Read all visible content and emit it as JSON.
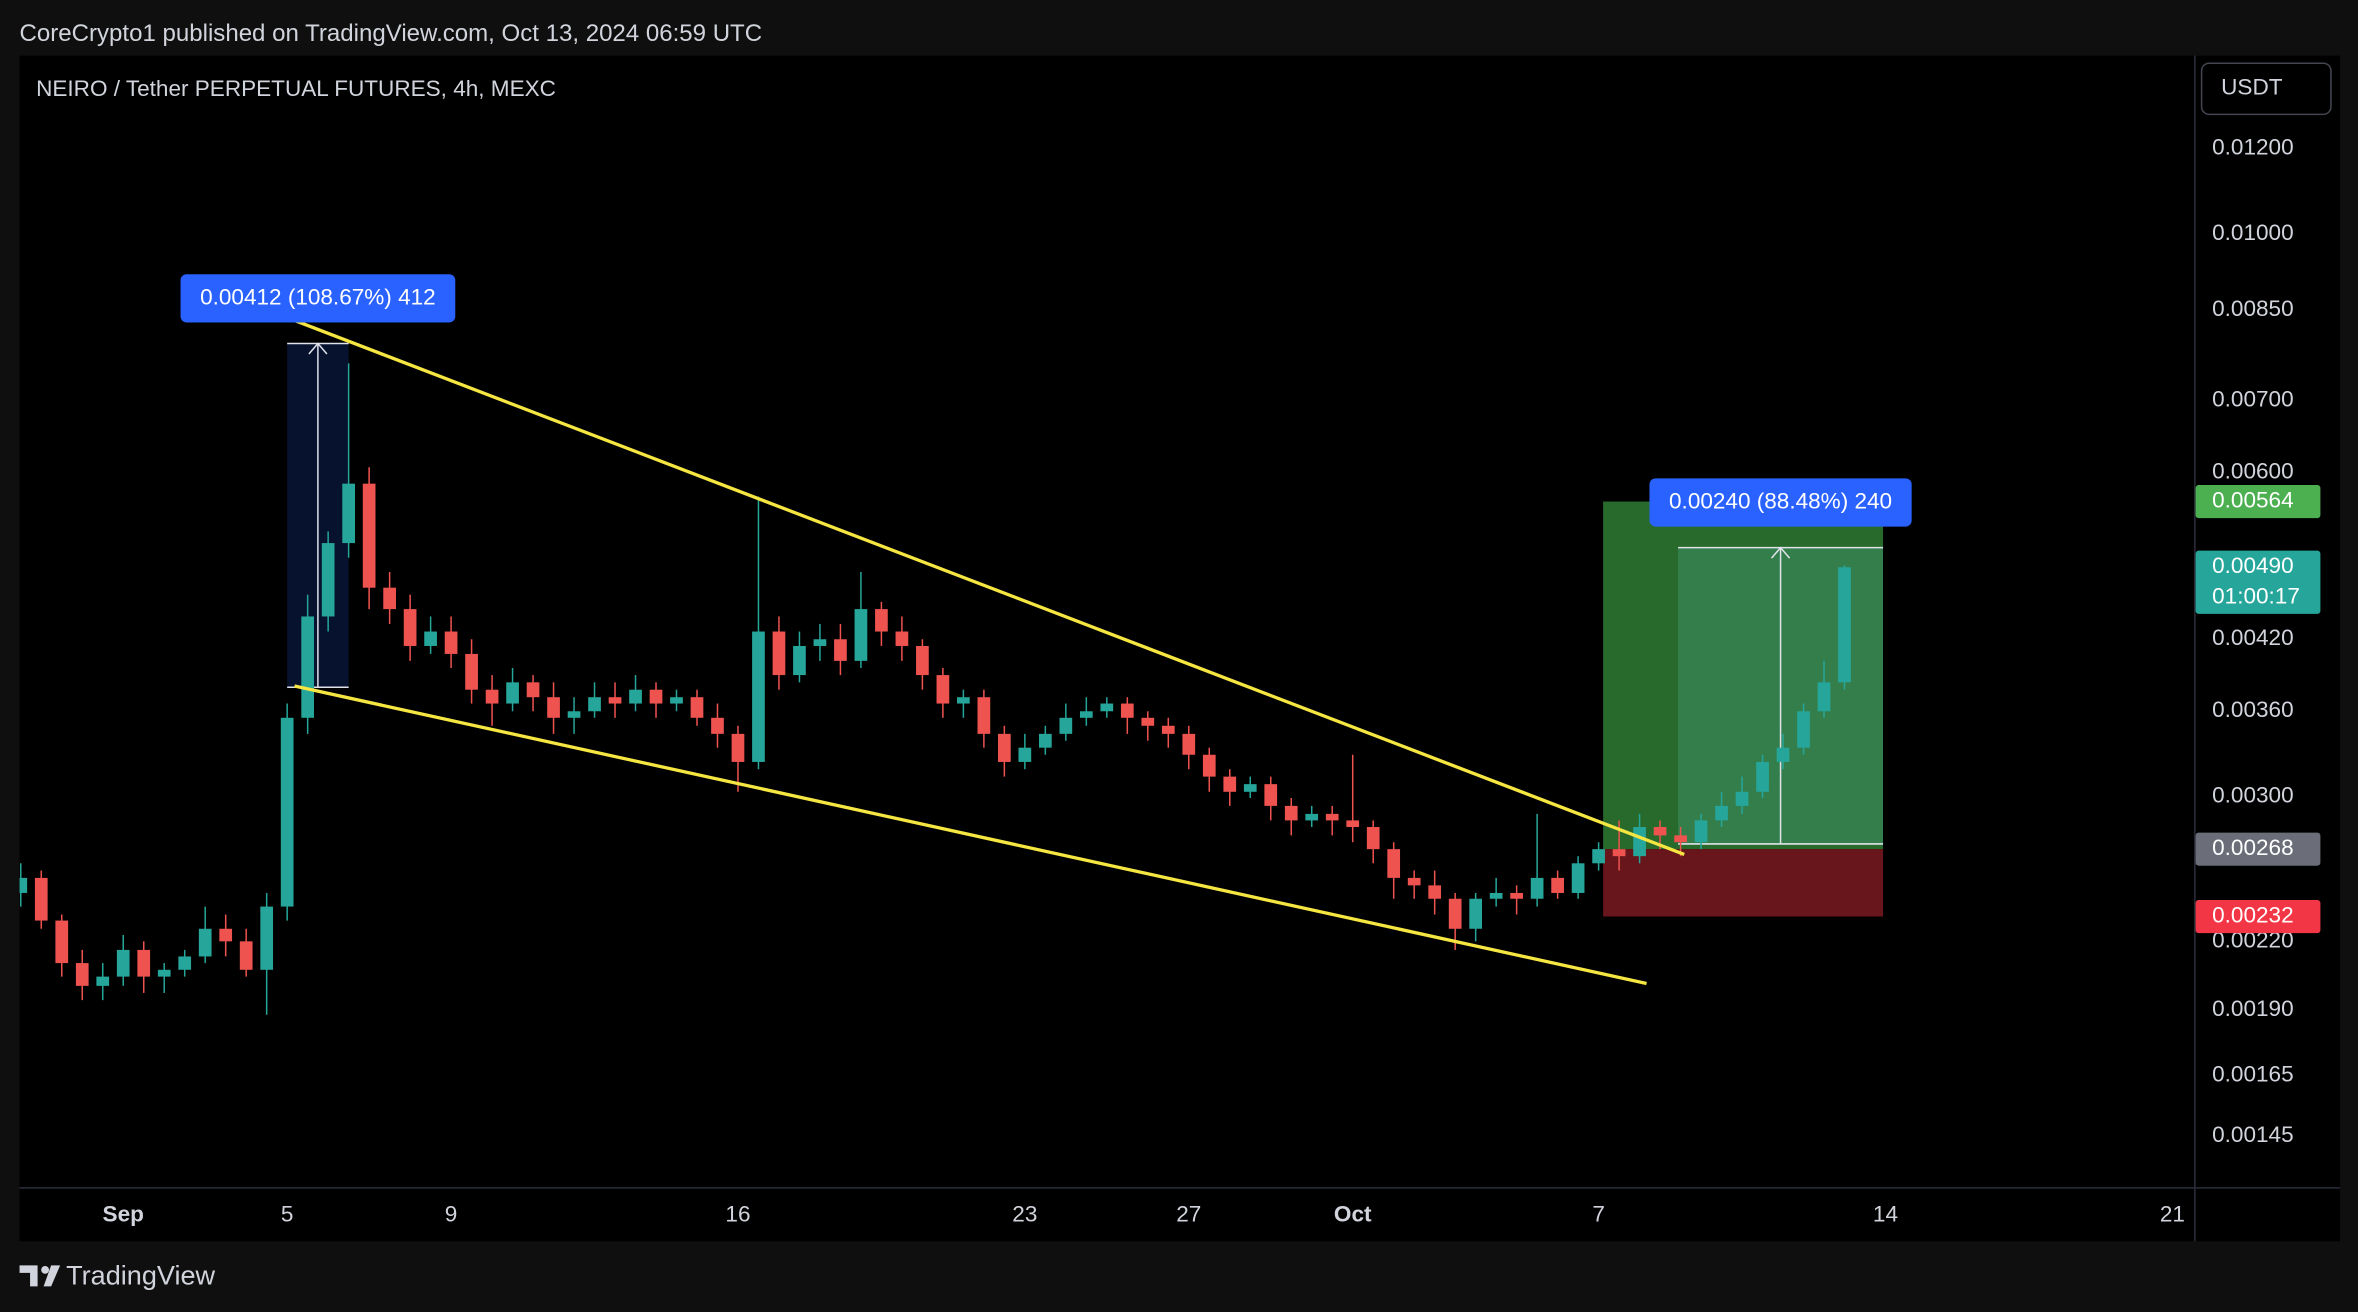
{
  "header": {
    "published": "CoreCrypto1 published on TradingView.com, Oct 13, 2024 06:59 UTC"
  },
  "footer": {
    "brand": "TradingView"
  },
  "chart_data": {
    "type": "candlestick",
    "title": "NEIRO / Tether PERPETUAL FUTURES, 4h, MEXC",
    "currency": "USDT",
    "log_scale": true,
    "grid": false,
    "up_color": "#26a69a",
    "down_color": "#ef5350",
    "x": [
      -2.5,
      -2,
      -1.5,
      -1,
      -0.5,
      0,
      0.5,
      1,
      1.5,
      2,
      2.5,
      3,
      3.5,
      4,
      4.5,
      5,
      5.5,
      6,
      6.5,
      7,
      7.5,
      8,
      8.5,
      9,
      9.5,
      10,
      10.5,
      11,
      11.5,
      12,
      12.5,
      13,
      13.5,
      14,
      14.5,
      15,
      15.5,
      16,
      16.5,
      17,
      17.5,
      18,
      18.5,
      19,
      19.5,
      20,
      20.5,
      21,
      21.5,
      22,
      22.5,
      23,
      23.5,
      24,
      24.5,
      25,
      25.5,
      26,
      26.5,
      27,
      27.5,
      28,
      28.5,
      29,
      29.5,
      30,
      30.5,
      31,
      31.5,
      32,
      32.5,
      33,
      33.5,
      34,
      34.5,
      35,
      35.5,
      36,
      36.5,
      37,
      37.5,
      38,
      38.5,
      39,
      39.5,
      40,
      40.5,
      41,
      41.5,
      42
    ],
    "open": [
      0.00244,
      0.00252,
      0.0023,
      0.0021,
      0.002,
      0.00204,
      0.00216,
      0.00204,
      0.00207,
      0.00213,
      0.00226,
      0.0022,
      0.00207,
      0.00237,
      0.00355,
      0.00441,
      0.00516,
      0.00586,
      0.00469,
      0.00448,
      0.00414,
      0.00427,
      0.00407,
      0.00377,
      0.00366,
      0.00383,
      0.00371,
      0.00355,
      0.0036,
      0.00371,
      0.00366,
      0.00377,
      0.00366,
      0.00371,
      0.00355,
      0.00343,
      0.00323,
      0.00427,
      0.00389,
      0.00414,
      0.0042,
      0.00401,
      0.00448,
      0.00427,
      0.00414,
      0.00389,
      0.00366,
      0.00371,
      0.00343,
      0.00323,
      0.00333,
      0.00343,
      0.00355,
      0.0036,
      0.00366,
      0.00355,
      0.00349,
      0.00343,
      0.00328,
      0.00313,
      0.00303,
      0.00308,
      0.00294,
      0.00285,
      0.00289,
      0.00285,
      0.00281,
      0.00268,
      0.00252,
      0.00248,
      0.00241,
      0.00226,
      0.00241,
      0.00244,
      0.00241,
      0.00252,
      0.00244,
      0.0026,
      0.00268,
      0.00264,
      0.00281,
      0.00276,
      0.00272,
      0.00285,
      0.00294,
      0.00303,
      0.00323,
      0.00333,
      0.0036,
      0.00383
    ],
    "high": [
      0.0026,
      0.00256,
      0.00233,
      0.00216,
      0.0021,
      0.00223,
      0.0022,
      0.0021,
      0.00216,
      0.00237,
      0.00233,
      0.00226,
      0.00244,
      0.00366,
      0.00462,
      0.00529,
      0.00758,
      0.00607,
      0.00485,
      0.00462,
      0.00441,
      0.00441,
      0.0042,
      0.00389,
      0.00395,
      0.00389,
      0.00383,
      0.00371,
      0.00383,
      0.00383,
      0.00389,
      0.00383,
      0.00377,
      0.00377,
      0.00366,
      0.00349,
      0.0057,
      0.00441,
      0.00427,
      0.00434,
      0.00434,
      0.00485,
      0.00455,
      0.00441,
      0.0042,
      0.00395,
      0.00377,
      0.00377,
      0.00349,
      0.00343,
      0.00349,
      0.00366,
      0.00371,
      0.00371,
      0.00371,
      0.0036,
      0.00355,
      0.00349,
      0.00333,
      0.00318,
      0.00313,
      0.00313,
      0.00299,
      0.00294,
      0.00294,
      0.00328,
      0.00285,
      0.00272,
      0.00256,
      0.00256,
      0.00244,
      0.00244,
      0.00252,
      0.00248,
      0.00289,
      0.00256,
      0.00264,
      0.00272,
      0.00285,
      0.00289,
      0.00285,
      0.00281,
      0.00289,
      0.00303,
      0.00313,
      0.00328,
      0.00343,
      0.00366,
      0.00401,
      0.00492
    ],
    "low": [
      0.00237,
      0.00226,
      0.00204,
      0.00194,
      0.00194,
      0.002,
      0.00197,
      0.00197,
      0.00204,
      0.0021,
      0.00213,
      0.00204,
      0.00188,
      0.0023,
      0.00343,
      0.00427,
      0.005,
      0.00448,
      0.00434,
      0.00401,
      0.00407,
      0.00395,
      0.00366,
      0.00349,
      0.0036,
      0.0036,
      0.00343,
      0.00343,
      0.00355,
      0.00355,
      0.0036,
      0.00355,
      0.0036,
      0.00349,
      0.00333,
      0.00303,
      0.00318,
      0.00377,
      0.00383,
      0.00401,
      0.00389,
      0.00395,
      0.00414,
      0.00401,
      0.00377,
      0.00355,
      0.00355,
      0.00333,
      0.00313,
      0.00318,
      0.00328,
      0.00338,
      0.00349,
      0.00355,
      0.00343,
      0.00338,
      0.00333,
      0.00318,
      0.00303,
      0.00294,
      0.00299,
      0.00285,
      0.00276,
      0.00281,
      0.00276,
      0.00272,
      0.0026,
      0.00241,
      0.00241,
      0.00233,
      0.00216,
      0.0022,
      0.00237,
      0.00233,
      0.00237,
      0.00241,
      0.00241,
      0.00256,
      0.00256,
      0.0026,
      0.00268,
      0.00264,
      0.00268,
      0.00281,
      0.00289,
      0.00299,
      0.00318,
      0.00328,
      0.00355,
      0.00377
    ],
    "close": [
      0.00252,
      0.0023,
      0.0021,
      0.002,
      0.00204,
      0.00216,
      0.00204,
      0.00207,
      0.00213,
      0.00226,
      0.0022,
      0.00207,
      0.00237,
      0.00355,
      0.00441,
      0.00516,
      0.00586,
      0.00469,
      0.00448,
      0.00414,
      0.00427,
      0.00407,
      0.00377,
      0.00366,
      0.00383,
      0.00371,
      0.00355,
      0.0036,
      0.00371,
      0.00366,
      0.00377,
      0.00366,
      0.00371,
      0.00355,
      0.00343,
      0.00323,
      0.00427,
      0.00389,
      0.00414,
      0.0042,
      0.00401,
      0.00448,
      0.00427,
      0.00414,
      0.00389,
      0.00366,
      0.00371,
      0.00343,
      0.00323,
      0.00333,
      0.00343,
      0.00355,
      0.0036,
      0.00366,
      0.00355,
      0.00349,
      0.00343,
      0.00328,
      0.00313,
      0.00303,
      0.00308,
      0.00294,
      0.00285,
      0.00289,
      0.00285,
      0.00281,
      0.00268,
      0.00252,
      0.00248,
      0.00241,
      0.00226,
      0.00241,
      0.00244,
      0.00241,
      0.00252,
      0.00244,
      0.0026,
      0.00268,
      0.00264,
      0.00281,
      0.00276,
      0.00272,
      0.00285,
      0.00294,
      0.00303,
      0.00323,
      0.00333,
      0.0036,
      0.00383,
      0.0049
    ],
    "xlim": [
      -2.53,
      50.53
    ],
    "xticks": [
      {
        "value": 0,
        "label": "Sep"
      },
      {
        "value": 4,
        "label": "5"
      },
      {
        "value": 8,
        "label": "9"
      },
      {
        "value": 15,
        "label": "16"
      },
      {
        "value": 22,
        "label": "23"
      },
      {
        "value": 26,
        "label": "27"
      },
      {
        "value": 30,
        "label": "Oct"
      },
      {
        "value": 36,
        "label": "7"
      },
      {
        "value": 43,
        "label": "14"
      },
      {
        "value": 50,
        "label": "21"
      }
    ],
    "ylim": [
      0.0013,
      0.0146
    ],
    "yticks": [
      {
        "value": 0.012,
        "label": "0.01200"
      },
      {
        "value": 0.01,
        "label": "0.01000"
      },
      {
        "value": 0.0085,
        "label": "0.00850"
      },
      {
        "value": 0.007,
        "label": "0.00700"
      },
      {
        "value": 0.006,
        "label": "0.00600"
      },
      {
        "value": 0.0042,
        "label": "0.00420"
      },
      {
        "value": 0.0036,
        "label": "0.00360"
      },
      {
        "value": 0.003,
        "label": "0.00300"
      },
      {
        "value": 0.0022,
        "label": "0.00220"
      },
      {
        "value": 0.0019,
        "label": "0.00190"
      },
      {
        "value": 0.00165,
        "label": "0.00165"
      },
      {
        "value": 0.00145,
        "label": "0.00145"
      }
    ],
    "price_labels": [
      {
        "value": 0.00564,
        "label": "0.00564",
        "color": "#4caf50"
      },
      {
        "value": 0.0049,
        "label": "0.00490",
        "color": "#26a69a",
        "countdown": "01:00:17"
      },
      {
        "value": 0.00268,
        "label": "0.00268",
        "color": "#6b6e78"
      },
      {
        "value": 0.00232,
        "label": "0.00232",
        "color": "#f23645"
      }
    ],
    "trendline_color": "#f5e642",
    "trendlines": [
      {
        "x": [
          4.18,
          38.09
        ],
        "y": [
          0.00831,
          0.00265
        ]
      },
      {
        "x": [
          4.18,
          37.17
        ],
        "y": [
          0.0038,
          0.00201
        ]
      }
    ],
    "position": {
      "x": [
        36.11,
        42.94
      ],
      "entry": 0.00268,
      "target": 0.00564,
      "stop": 0.00232
    },
    "measurements": [
      {
        "x": [
          4.0,
          5.5
        ],
        "low": 0.00379,
        "high": 0.00791,
        "label": "0.00412 (108.67%) 412",
        "fill": "rgba(41,98,255,0.18)"
      },
      {
        "x": [
          37.94,
          42.94
        ],
        "low": 0.00271,
        "high": 0.00511,
        "label": "0.00240 (88.48%) 240",
        "fill": "rgba(100,200,190,0.22)"
      }
    ]
  }
}
